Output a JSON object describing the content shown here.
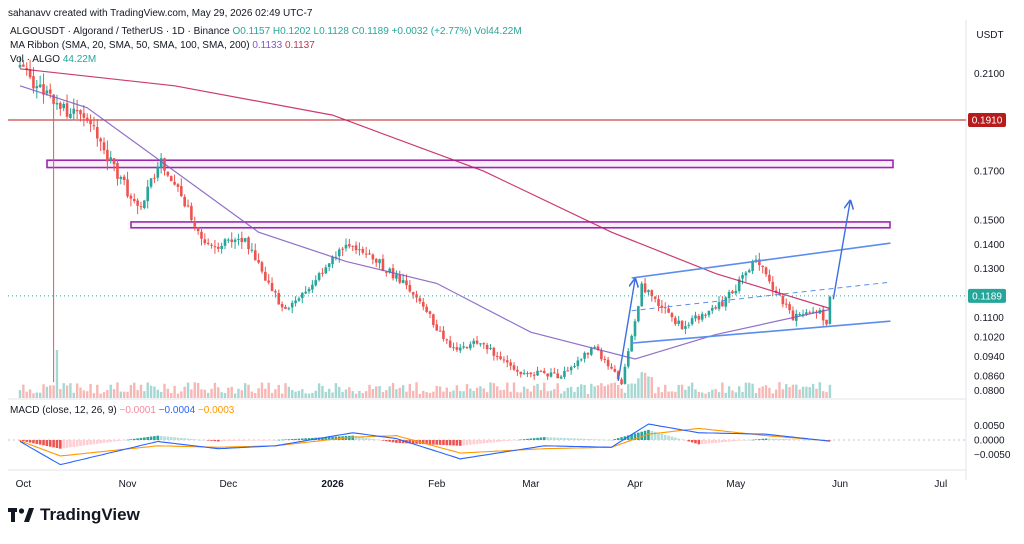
{
  "credit": "sahanavv created with TradingView.com, May 29, 2026 02:49 UTC-7",
  "header": {
    "symbol": "ALGOUSDT",
    "description": "· Algorand / TetherUS · 1D · Binance",
    "ohlc": "O0.1157 H0.1202 L0.1128 C0.1189 +0.0032 (+2.77%)",
    "vol_text": "Vol44.22M",
    "ma_label": "MA Ribbon (SMA, 20, SMA, 50, SMA, 100, SMA, 200)",
    "ma_v1": "0.1133",
    "ma_v2": "0.1137",
    "vol_label": "Vol · ALGO",
    "vol_value": "44.22M"
  },
  "currency": "USDT",
  "current_price_label": "0.1189",
  "resistance_label": "0.1910",
  "macd": {
    "label": "MACD (close, 12, 26, 9)",
    "v_hist": "−0.0001",
    "v_macd": "−0.0004",
    "v_signal": "−0.0003"
  },
  "brand": "TradingView",
  "colors": {
    "up": "#26a69a",
    "down": "#ef5350",
    "ma_short": "#7e57c2",
    "ma_long": "#c2185b",
    "zone": "#9c27b0",
    "channel": "#5b8def",
    "macd_line": "#2962ff",
    "signal_line": "#ff9800",
    "resistance": "#b71c1c"
  },
  "chart_data": {
    "type": "candlestick",
    "price_axis_ticks": [
      "0.2100",
      "0.1910",
      "0.1700",
      "0.1500",
      "0.1400",
      "0.1300",
      "0.1189",
      "0.1100",
      "0.1020",
      "0.0940",
      "0.0860",
      "0.0800"
    ],
    "macd_axis_ticks": [
      "0.0050",
      "0.0000",
      "−0.0050"
    ],
    "x_axis_labels": [
      "Oct",
      "Nov",
      "Dec",
      "2026",
      "Feb",
      "Mar",
      "Apr",
      "May",
      "Jun",
      "Jul"
    ],
    "ylim": [
      0.077,
      0.232
    ],
    "resistance_line": 0.191,
    "zones": [
      {
        "low": 0.1715,
        "high": 0.1745
      },
      {
        "low": 0.1468,
        "high": 0.1492
      }
    ],
    "channel": {
      "upper": [
        {
          "date": "2026-03-31",
          "price": 0.1262
        },
        {
          "date": "2026-06-16",
          "price": 0.1405
        }
      ],
      "lower": [
        {
          "date": "2026-03-31",
          "price": 0.0995
        },
        {
          "date": "2026-06-16",
          "price": 0.1085
        }
      ],
      "mid": [
        {
          "date": "2026-03-31",
          "price": 0.1128
        },
        {
          "date": "2026-06-16",
          "price": 0.1245
        }
      ]
    },
    "projection": [
      {
        "date": "2026-05-30",
        "price": 0.1175
      },
      {
        "date": "2026-06-04",
        "price": 0.1575
      }
    ],
    "key_points": [
      {
        "date": "2025-09-30",
        "price": 0.213
      },
      {
        "date": "2025-10-10",
        "price": 0.198
      },
      {
        "date": "2025-10-21",
        "price": 0.189
      },
      {
        "date": "2025-11-04",
        "price": 0.154
      },
      {
        "date": "2025-11-11",
        "price": 0.175
      },
      {
        "date": "2025-11-25",
        "price": 0.139
      },
      {
        "date": "2025-12-05",
        "price": 0.143
      },
      {
        "date": "2025-12-18",
        "price": 0.112
      },
      {
        "date": "2026-01-05",
        "price": 0.14
      },
      {
        "date": "2026-01-15",
        "price": 0.132
      },
      {
        "date": "2026-01-25",
        "price": 0.121
      },
      {
        "date": "2026-02-05",
        "price": 0.097
      },
      {
        "date": "2026-02-14",
        "price": 0.1
      },
      {
        "date": "2026-02-25",
        "price": 0.088
      },
      {
        "date": "2026-03-10",
        "price": 0.086
      },
      {
        "date": "2026-03-20",
        "price": 0.098
      },
      {
        "date": "2026-03-28",
        "price": 0.083
      },
      {
        "date": "2026-04-03",
        "price": 0.123
      },
      {
        "date": "2026-04-15",
        "price": 0.106
      },
      {
        "date": "2026-04-28",
        "price": 0.117
      },
      {
        "date": "2026-05-07",
        "price": 0.133
      },
      {
        "date": "2026-05-18",
        "price": 0.11
      },
      {
        "date": "2026-05-26",
        "price": 0.114
      },
      {
        "date": "2026-05-28",
        "price": 0.106
      },
      {
        "date": "2026-05-29",
        "price": 0.1189
      }
    ],
    "sma_short": [
      {
        "date": "2025-09-30",
        "price": 0.205
      },
      {
        "date": "2025-10-20",
        "price": 0.196
      },
      {
        "date": "2025-11-10",
        "price": 0.175
      },
      {
        "date": "2025-12-10",
        "price": 0.145
      },
      {
        "date": "2026-01-05",
        "price": 0.133
      },
      {
        "date": "2026-02-01",
        "price": 0.124
      },
      {
        "date": "2026-03-01",
        "price": 0.104
      },
      {
        "date": "2026-04-01",
        "price": 0.093
      },
      {
        "date": "2026-04-25",
        "price": 0.103
      },
      {
        "date": "2026-05-29",
        "price": 0.1133
      }
    ],
    "sma_long": [
      {
        "date": "2025-09-30",
        "price": 0.212
      },
      {
        "date": "2025-11-15",
        "price": 0.205
      },
      {
        "date": "2026-01-01",
        "price": 0.193
      },
      {
        "date": "2026-02-15",
        "price": 0.17
      },
      {
        "date": "2026-03-25",
        "price": 0.145
      },
      {
        "date": "2026-04-25",
        "price": 0.128
      },
      {
        "date": "2026-05-29",
        "price": 0.1137
      }
    ],
    "macd_points": [
      {
        "date": "2025-09-30",
        "macd": -0.0005,
        "signal": -0.0003
      },
      {
        "date": "2025-10-12",
        "macd": -0.0085,
        "signal": -0.0055
      },
      {
        "date": "2025-11-10",
        "macd": -0.0005,
        "signal": -0.002
      },
      {
        "date": "2025-11-28",
        "macd": -0.003,
        "signal": -0.0025
      },
      {
        "date": "2025-12-15",
        "macd": -0.002,
        "signal": -0.002
      },
      {
        "date": "2026-01-07",
        "macd": 0.0025,
        "signal": 0.001
      },
      {
        "date": "2026-01-20",
        "macd": 0.0005,
        "signal": 0.0015
      },
      {
        "date": "2026-02-08",
        "macd": -0.0065,
        "signal": -0.0045
      },
      {
        "date": "2026-03-05",
        "macd": -0.002,
        "signal": -0.003
      },
      {
        "date": "2026-03-25",
        "macd": -0.0025,
        "signal": -0.0025
      },
      {
        "date": "2026-04-05",
        "macd": 0.0055,
        "signal": 0.002
      },
      {
        "date": "2026-04-20",
        "macd": 0.0025,
        "signal": 0.004
      },
      {
        "date": "2026-05-10",
        "macd": 0.002,
        "signal": 0.0015
      },
      {
        "date": "2026-05-29",
        "macd": -0.0004,
        "signal": -0.0003
      }
    ]
  }
}
